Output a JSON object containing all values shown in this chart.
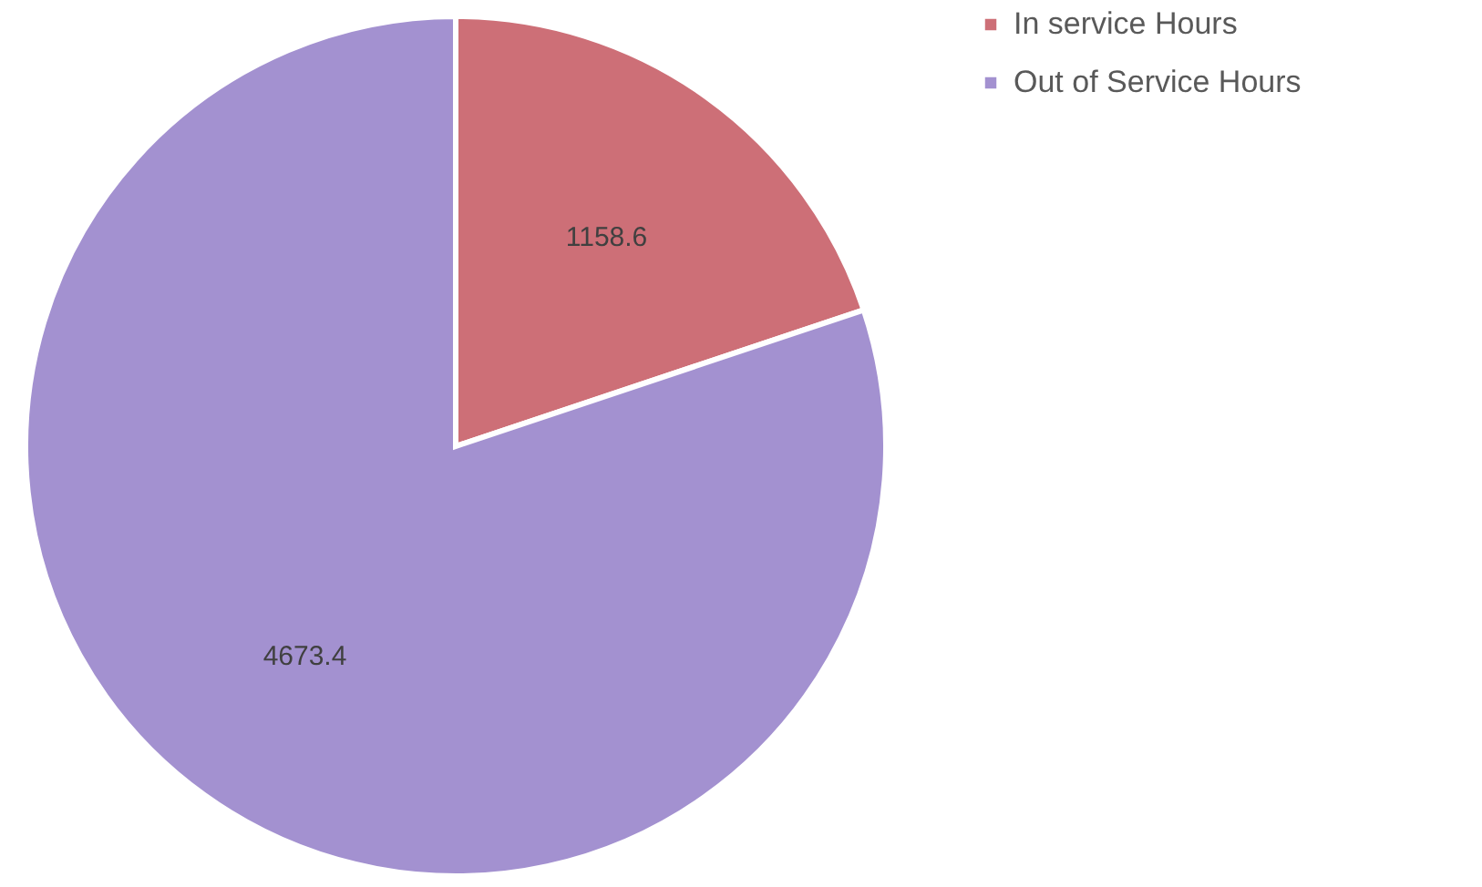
{
  "chart_data": {
    "type": "pie",
    "categories": [
      "In service Hours",
      "Out of Service Hours"
    ],
    "values": [
      1158.6,
      4673.4
    ],
    "colors": [
      "#cd6f77",
      "#a391d0"
    ],
    "data_labels": true,
    "legend": "right"
  }
}
